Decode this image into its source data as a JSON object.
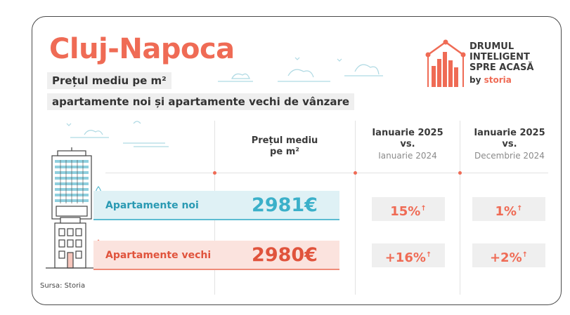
{
  "header": {
    "title": "Cluj-Napoca",
    "subtitle_line1": "Prețul mediu pe m²",
    "subtitle_line2": "apartamente noi și apartamente vechi de vânzare"
  },
  "logo": {
    "line1": "DRUMUL",
    "line2": "INTELIGENT",
    "line3": "SPRE ACASĂ",
    "by": "by",
    "brand": "storia"
  },
  "table": {
    "columns": [
      {
        "line1": "Prețul mediu",
        "line2": "pe m²"
      },
      {
        "line1": "Ianuarie 2025",
        "line2": "vs.",
        "line3": "Ianuarie 2024"
      },
      {
        "line1": "Ianuarie 2025",
        "line2": "vs.",
        "line3": "Decembrie 2024"
      }
    ],
    "rows": [
      {
        "label": "Apartamente noi",
        "price": "2981€",
        "yoy": "15%",
        "mom": "1%",
        "arrow": "↑"
      },
      {
        "label": "Apartamente vechi",
        "price": "2980€",
        "yoy": "+16%",
        "mom": "+2%",
        "arrow": "↑"
      }
    ]
  },
  "colors": {
    "accent": "#ef6b55",
    "noi": "#3bb0c9",
    "vechi": "#e0533c",
    "pill_bg": "#efefef"
  },
  "source": "Sursa: Storia"
}
